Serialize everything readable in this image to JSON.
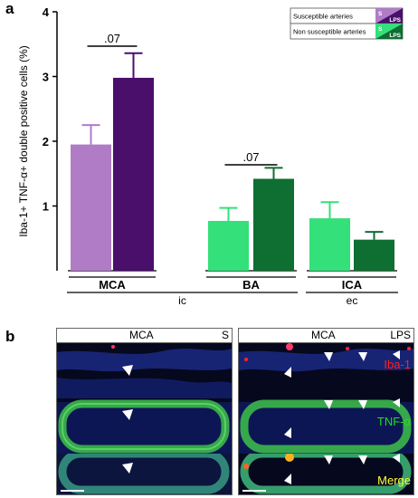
{
  "panel_a_label": "a",
  "panel_b_label": "b",
  "chart_data": {
    "type": "bar",
    "ylabel": "Iba-1+ TNF-α+ double positive cells (%)",
    "ylim": [
      0,
      4
    ],
    "yticks": [
      1,
      2,
      3,
      4
    ],
    "groups": [
      {
        "name": "MCA",
        "saline": 1.95,
        "saline_err": 0.3,
        "lps": 2.98,
        "lps_err": 0.38,
        "saline_color": "#b07cc6",
        "lps_color": "#4a0e6b"
      },
      {
        "name": "BA",
        "saline": 0.77,
        "saline_err": 0.2,
        "lps": 1.42,
        "lps_err": 0.17,
        "saline_color": "#33e07a",
        "lps_color": "#0f6e32"
      },
      {
        "name": "ICA",
        "saline": 0.81,
        "saline_err": 0.25,
        "lps": 0.48,
        "lps_err": 0.12,
        "saline_color": "#33e07a",
        "lps_color": "#0f6e32"
      }
    ],
    "annotations": [
      {
        "text": ".07",
        "group": "MCA"
      },
      {
        "text": ".07",
        "group": "BA"
      }
    ],
    "region_labels": [
      {
        "text": "ic",
        "groups": [
          "MCA",
          "BA"
        ]
      },
      {
        "text": "ec",
        "groups": [
          "ICA"
        ]
      }
    ],
    "legend": {
      "position": "top-right",
      "entries": [
        {
          "label": "Susceptible arteries",
          "s": "S",
          "lps": "LPS",
          "s_color": "#b07cc6",
          "lps_color": "#4a0e6b"
        },
        {
          "label": "Non susceptible arteries",
          "s": "S",
          "lps": "LPS",
          "s_color": "#33e07a",
          "lps_color": "#0f6e32"
        }
      ]
    }
  },
  "micrographs": [
    {
      "artery": "MCA",
      "condition": "S"
    },
    {
      "artery": "MCA",
      "condition": "LPS",
      "channels": [
        {
          "label": "Iba-1",
          "color": "#ff2020"
        },
        {
          "label": "TNF-α",
          "color": "#22dd22"
        },
        {
          "label": "Merge",
          "color": "#ffff33"
        }
      ]
    }
  ]
}
